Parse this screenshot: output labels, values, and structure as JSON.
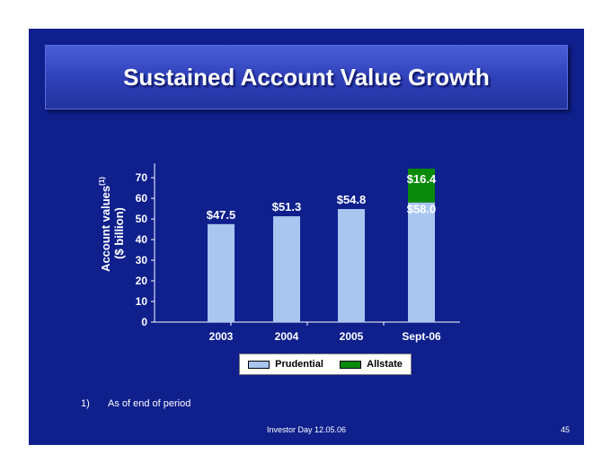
{
  "slide": {
    "title": "Sustained Account Value Growth"
  },
  "chart_data": {
    "type": "bar",
    "stacked": true,
    "categories": [
      "2003",
      "2004",
      "2005",
      "Sept-06"
    ],
    "series": [
      {
        "name": "Prudential",
        "values": [
          47.5,
          51.3,
          54.8,
          58.0
        ],
        "labels": [
          "$47.5",
          "$51.3",
          "$54.8",
          "$58.0"
        ],
        "color": "#a9c6f0"
      },
      {
        "name": "Allstate",
        "values": [
          0,
          0,
          0,
          16.4
        ],
        "labels": [
          "",
          "",
          "",
          "$16.4"
        ],
        "color": "#0a8a0a"
      }
    ],
    "ylabel_line1": "Account values",
    "ylabel_superscript": "(1)",
    "ylabel_line2": "($ billion)",
    "yticks": [
      0,
      10,
      20,
      30,
      40,
      50,
      60,
      70
    ],
    "ylim": [
      0,
      77
    ],
    "legend_position": "bottom",
    "grid": false
  },
  "footnote": {
    "number": "1)",
    "text": "As of end of period"
  },
  "footer": {
    "text": "Investor Day 12.05.06",
    "page": "45"
  }
}
